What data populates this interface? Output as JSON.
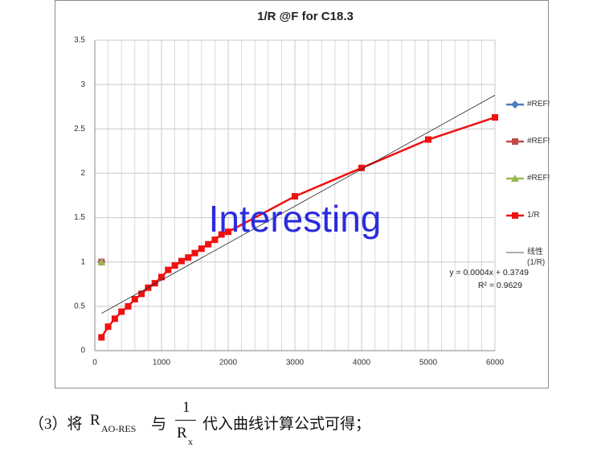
{
  "chart_data": {
    "type": "line",
    "title": "1/R @F for C18.3",
    "xlim": [
      0,
      6000
    ],
    "xticks": [
      0,
      1000,
      2000,
      3000,
      4000,
      5000,
      6000
    ],
    "ylim": [
      0,
      3.5
    ],
    "yticks": [
      0,
      0.5,
      1,
      1.5,
      2,
      2.5,
      3,
      3.5
    ],
    "grid": true,
    "minor_grid_step_x": 200,
    "legend": "right",
    "series": [
      {
        "name": "#REF!",
        "color": "#4a7ebb",
        "marker": "diamond",
        "x": [
          100
        ],
        "values": [
          1
        ]
      },
      {
        "name": "#REF!",
        "color": "#be4b48",
        "marker": "square",
        "x": [
          100
        ],
        "values": [
          1
        ]
      },
      {
        "name": "#REF!",
        "color": "#98b954",
        "marker": "triangle",
        "x": [
          100
        ],
        "values": [
          1
        ]
      },
      {
        "name": "1/R",
        "color": "#ee1111",
        "marker": "square",
        "x": [
          100,
          200,
          300,
          400,
          500,
          600,
          700,
          800,
          900,
          1000,
          1100,
          1200,
          1300,
          1400,
          1500,
          1600,
          1700,
          1800,
          1900,
          2000,
          3000,
          4000,
          5000,
          6000
        ],
        "values": [
          0.15,
          0.27,
          0.36,
          0.44,
          0.5,
          0.58,
          0.64,
          0.71,
          0.76,
          0.83,
          0.91,
          0.96,
          1.01,
          1.05,
          1.1,
          1.15,
          1.2,
          1.25,
          1.31,
          1.34,
          1.74,
          2.06,
          2.38,
          2.63
        ]
      },
      {
        "name": "线性 (1/R)",
        "color": "#222222",
        "marker": null,
        "x": [
          100,
          6000
        ],
        "values": [
          0.42,
          2.88
        ]
      }
    ],
    "annotations": [
      "y = 0.0004x + 0.3749",
      "R² = 0.9629"
    ],
    "watermark": "Interesting"
  },
  "document": {
    "prefix": "（3）将",
    "r_symbol": "R",
    "r_subscript": "AO-RES",
    "middle": "与",
    "fraction_numerator": "1",
    "fraction_symbol": "R",
    "fraction_subscript": "x",
    "suffix": "代入曲线计算公式可得；"
  }
}
